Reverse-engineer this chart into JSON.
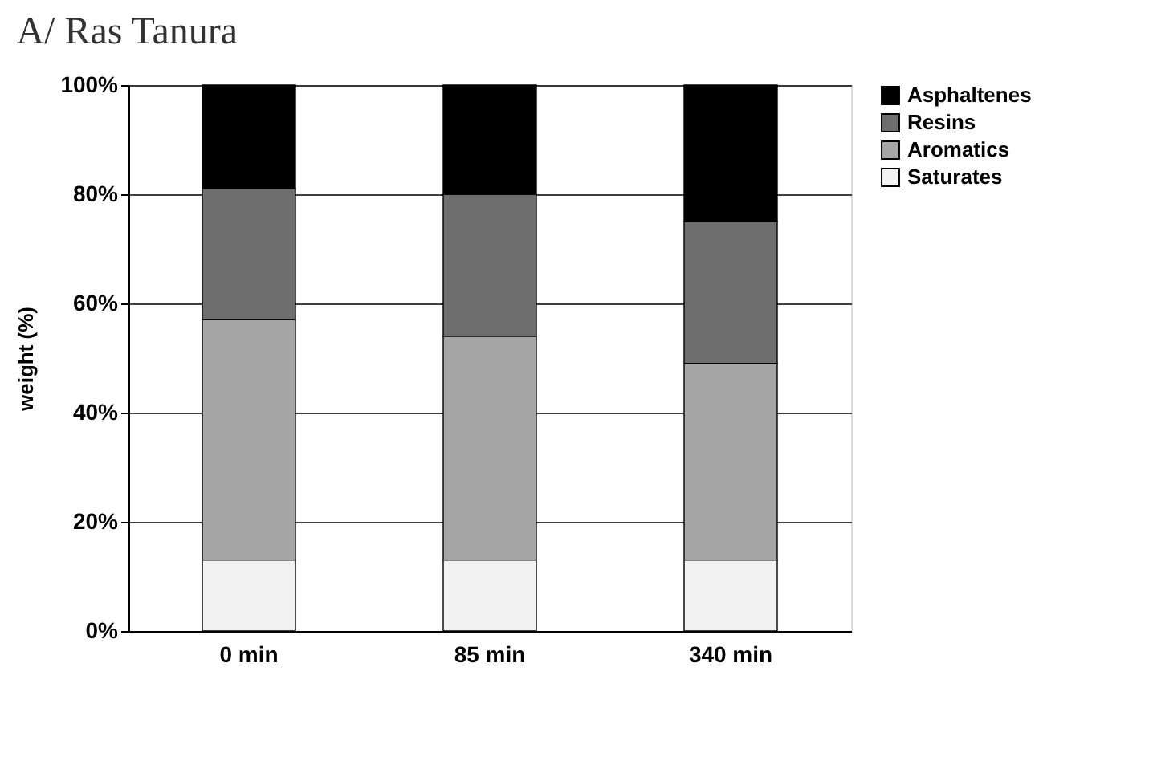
{
  "chart_data": {
    "type": "bar",
    "title": "A/ Ras Tanura",
    "ylabel": "weight (%)",
    "categories": [
      "0 min",
      "85 min",
      "340 min"
    ],
    "stacked": true,
    "series": [
      {
        "name": "Saturates",
        "color": "#f2f2f2",
        "values": [
          13,
          13,
          13
        ]
      },
      {
        "name": "Aromatics",
        "color": "#a6a6a6",
        "values": [
          44,
          41,
          36
        ]
      },
      {
        "name": "Resins",
        "color": "#6e6e6e",
        "values": [
          24,
          26,
          26
        ]
      },
      {
        "name": "Asphaltenes",
        "color": "#000000",
        "values": [
          19,
          20,
          25
        ]
      }
    ],
    "ylim": [
      0,
      100
    ],
    "yticks": [
      {
        "value": 0,
        "label": "0%"
      },
      {
        "value": 20,
        "label": "20%"
      },
      {
        "value": 40,
        "label": "40%"
      },
      {
        "value": 60,
        "label": "60%"
      },
      {
        "value": 80,
        "label": "80%"
      },
      {
        "value": 100,
        "label": "100%"
      }
    ],
    "grid": "y",
    "legend": "right"
  }
}
